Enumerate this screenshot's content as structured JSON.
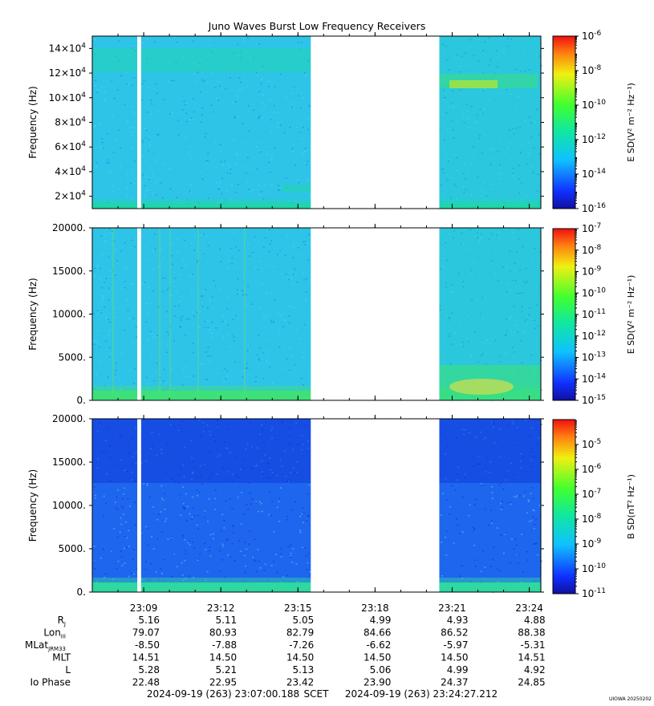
{
  "title": "Juno Waves Burst Low Frequency Receivers",
  "chart_data": [
    {
      "type": "heatmap",
      "panel": "e-high",
      "ylabel": "Frequency (Hz)",
      "ylim": [
        10000,
        150000
      ],
      "yticks": [
        {
          "value": 20000,
          "label": "2×10",
          "exp": "4"
        },
        {
          "value": 40000,
          "label": "4×10",
          "exp": "4"
        },
        {
          "value": 60000,
          "label": "6×10",
          "exp": "4"
        },
        {
          "value": 80000,
          "label": "8×10",
          "exp": "4"
        },
        {
          "value": 100000,
          "label": "10×10",
          "exp": "4"
        },
        {
          "value": 120000,
          "label": "12×10",
          "exp": "4"
        },
        {
          "value": 140000,
          "label": "14×10",
          "exp": "4"
        }
      ],
      "colorbar": {
        "label": "E SD(V² m⁻² Hz⁻¹)",
        "range_exp": [
          -16,
          -6
        ],
        "ticks": [
          {
            "base": "10",
            "exp": "-6"
          },
          {
            "base": "10",
            "exp": "-8"
          },
          {
            "base": "10",
            "exp": "-10"
          },
          {
            "base": "10",
            "exp": "-12"
          },
          {
            "base": "10",
            "exp": "-14"
          },
          {
            "base": "10",
            "exp": "-16"
          }
        ]
      },
      "colors": {
        "background": "#2ec4e8",
        "band": "#1fd6a8",
        "noise": "#1a7de8"
      }
    },
    {
      "type": "heatmap",
      "panel": "e-low",
      "ylabel": "Frequency (Hz)",
      "ylim": [
        0,
        20000
      ],
      "yticks": [
        {
          "value": 0,
          "label": "0."
        },
        {
          "value": 5000,
          "label": "5000."
        },
        {
          "value": 10000,
          "label": "10000."
        },
        {
          "value": 15000,
          "label": "15000."
        },
        {
          "value": 20000,
          "label": "20000."
        }
      ],
      "colorbar": {
        "label": "E SD(V² m⁻² Hz⁻¹)",
        "range_exp": [
          -15,
          -7
        ],
        "ticks": [
          {
            "base": "10",
            "exp": "-7"
          },
          {
            "base": "10",
            "exp": "-8"
          },
          {
            "base": "10",
            "exp": "-9"
          },
          {
            "base": "10",
            "exp": "-10"
          },
          {
            "base": "10",
            "exp": "-11"
          },
          {
            "base": "10",
            "exp": "-12"
          },
          {
            "base": "10",
            "exp": "-13"
          },
          {
            "base": "10",
            "exp": "-14"
          },
          {
            "base": "10",
            "exp": "-15"
          }
        ]
      },
      "colors": {
        "background": "#2ec4e8",
        "band": "#3ee07a",
        "noise": "#1a7de8"
      }
    },
    {
      "type": "heatmap",
      "panel": "b-low",
      "ylabel": "Frequency (Hz)",
      "ylim": [
        0,
        20000
      ],
      "yticks": [
        {
          "value": 0,
          "label": "0."
        },
        {
          "value": 5000,
          "label": "5000."
        },
        {
          "value": 10000,
          "label": "10000."
        },
        {
          "value": 15000,
          "label": "15000."
        },
        {
          "value": 20000,
          "label": "20000."
        }
      ],
      "colorbar": {
        "label": "B SD(nT² Hz⁻¹)",
        "range_exp": [
          -11,
          -4
        ],
        "ticks": [
          {
            "base": "10",
            "exp": "-5"
          },
          {
            "base": "10",
            "exp": "-6"
          },
          {
            "base": "10",
            "exp": "-7"
          },
          {
            "base": "10",
            "exp": "-8"
          },
          {
            "base": "10",
            "exp": "-9"
          },
          {
            "base": "10",
            "exp": "-10"
          },
          {
            "base": "10",
            "exp": "-11"
          }
        ]
      },
      "colors": {
        "background": "#1f66ee",
        "band": "#2ed8a0",
        "noise": "#0a2ad8"
      }
    }
  ],
  "time_axis": {
    "start": "23:07:00",
    "end": "23:24:27",
    "ticks": [
      "23:09",
      "23:12",
      "23:15",
      "23:18",
      "23:21",
      "23:24"
    ]
  },
  "data_gaps": [
    [
      "23:08:45",
      "23:08:54"
    ],
    [
      "23:15:30",
      "23:20:30"
    ]
  ],
  "ephemeris": {
    "rows": [
      {
        "label": "R",
        "sub": "J",
        "values": [
          "5.16",
          "5.11",
          "5.05",
          "4.99",
          "4.93",
          "4.88"
        ]
      },
      {
        "label": "Lon",
        "sub": "III",
        "values": [
          "79.07",
          "80.93",
          "82.79",
          "84.66",
          "86.52",
          "88.38"
        ]
      },
      {
        "label": "MLat",
        "sub": "JRM33",
        "values": [
          "-8.50",
          "-7.88",
          "-7.26",
          "-6.62",
          "-5.97",
          "-5.31"
        ]
      },
      {
        "label": "MLT",
        "sub": "",
        "values": [
          "14.51",
          "14.50",
          "14.50",
          "14.50",
          "14.50",
          "14.51"
        ]
      },
      {
        "label": "L",
        "sub": "",
        "values": [
          "5.28",
          "5.21",
          "5.13",
          "5.06",
          "4.99",
          "4.92"
        ]
      },
      {
        "label": "Io Phase",
        "sub": "",
        "values": [
          "22.48",
          "22.95",
          "23.42",
          "23.90",
          "24.37",
          "24.85"
        ]
      }
    ]
  },
  "footer": {
    "start": "2024-09-19 (263) 23:07:00.188",
    "scet": "SCET",
    "end": "2024-09-19 (263) 23:24:27.212",
    "credit": "UIOWA 20250202"
  }
}
